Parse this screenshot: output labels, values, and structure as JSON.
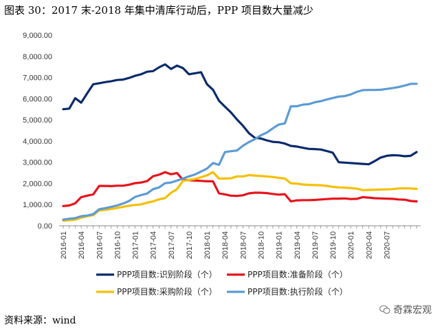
{
  "header": {
    "title": "图表 30：2017 末-2018 年集中清库行动后，PPP 项目数大量减少"
  },
  "footer": {
    "source": "资料来源：wind",
    "watermark": "奇霖宏观"
  },
  "chart_data": {
    "type": "line",
    "title": "图表 30：2017 末-2018 年集中清库行动后，PPP 项目数大量减少",
    "xlabel": "",
    "ylabel": "",
    "ylim": [
      0,
      9000
    ],
    "yticks": [
      "0.00",
      "1,000.00",
      "2,000.00",
      "3,000.00",
      "4,000.00",
      "5,000.00",
      "6,000.00",
      "7,000.00",
      "8,000.00",
      "9,000.00"
    ],
    "xticks": [
      "2016-01",
      "2016-04",
      "2016-07",
      "2016-10",
      "2017-01",
      "2017-04",
      "2017-07",
      "2017-10",
      "2018-01",
      "2018-04",
      "2018-07",
      "2018-10",
      "2019-01",
      "2019-04",
      "2019-07",
      "2019-10",
      "2020-01",
      "2020-04",
      "2020-07"
    ],
    "legend_position": "bottom",
    "series": [
      {
        "name": "PPP项目数:识别阶段（个）",
        "color": "#0a2a6a",
        "values": [
          5500,
          5530,
          6020,
          5810,
          6250,
          6680,
          6730,
          6780,
          6820,
          6880,
          6900,
          6980,
          7080,
          7150,
          7270,
          7300,
          7480,
          7620,
          7400,
          7560,
          7440,
          7150,
          7200,
          7250,
          6680,
          6420,
          5900,
          5620,
          5350,
          5020,
          4720,
          4370,
          4150,
          4120,
          4030,
          3960,
          3940,
          3880,
          3770,
          3740,
          3680,
          3630,
          3620,
          3600,
          3530,
          3450,
          3000,
          2980,
          2960,
          2940,
          2920,
          2900,
          3050,
          3220,
          3300,
          3330,
          3320,
          3280,
          3300,
          3480
        ]
      },
      {
        "name": "PPP项目数:准备阶段（个）",
        "color": "#e8121b",
        "values": [
          930,
          960,
          1060,
          1350,
          1420,
          1480,
          1880,
          1880,
          1870,
          1890,
          1890,
          1940,
          2010,
          2040,
          2110,
          2340,
          2410,
          2530,
          2430,
          2490,
          2160,
          2150,
          2130,
          2120,
          2100,
          2100,
          1530,
          1480,
          1420,
          1410,
          1440,
          1530,
          1560,
          1560,
          1540,
          1500,
          1470,
          1490,
          1150,
          1200,
          1210,
          1210,
          1220,
          1240,
          1260,
          1280,
          1280,
          1290,
          1260,
          1270,
          1350,
          1330,
          1300,
          1290,
          1280,
          1270,
          1240,
          1230,
          1170,
          1150
        ]
      },
      {
        "name": "PPP项目数:采购阶段（个）",
        "color": "#f5bf00",
        "values": [
          240,
          260,
          290,
          380,
          450,
          500,
          720,
          750,
          790,
          840,
          890,
          950,
          980,
          1010,
          1090,
          1150,
          1250,
          1310,
          1560,
          1730,
          2120,
          2160,
          2210,
          2290,
          2380,
          2530,
          2230,
          2230,
          2240,
          2330,
          2330,
          2390,
          2370,
          2350,
          2330,
          2300,
          2260,
          2230,
          2000,
          1990,
          1950,
          1930,
          1920,
          1910,
          1880,
          1840,
          1810,
          1800,
          1780,
          1750,
          1680,
          1690,
          1700,
          1710,
          1720,
          1730,
          1760,
          1770,
          1760,
          1740
        ]
      },
      {
        "name": "PPP项目数:执行阶段（个）",
        "color": "#5b9bd5",
        "values": [
          290,
          330,
          360,
          450,
          480,
          550,
          780,
          830,
          890,
          960,
          1050,
          1170,
          1360,
          1450,
          1520,
          1730,
          1810,
          2010,
          2040,
          2130,
          2230,
          2330,
          2420,
          2560,
          2700,
          2960,
          2880,
          3480,
          3520,
          3550,
          3780,
          3950,
          4090,
          4270,
          4400,
          4600,
          4780,
          4830,
          5640,
          5640,
          5720,
          5740,
          5830,
          5880,
          5960,
          6030,
          6100,
          6120,
          6200,
          6320,
          6400,
          6410,
          6410,
          6420,
          6460,
          6500,
          6550,
          6620,
          6700,
          6700
        ]
      }
    ]
  }
}
